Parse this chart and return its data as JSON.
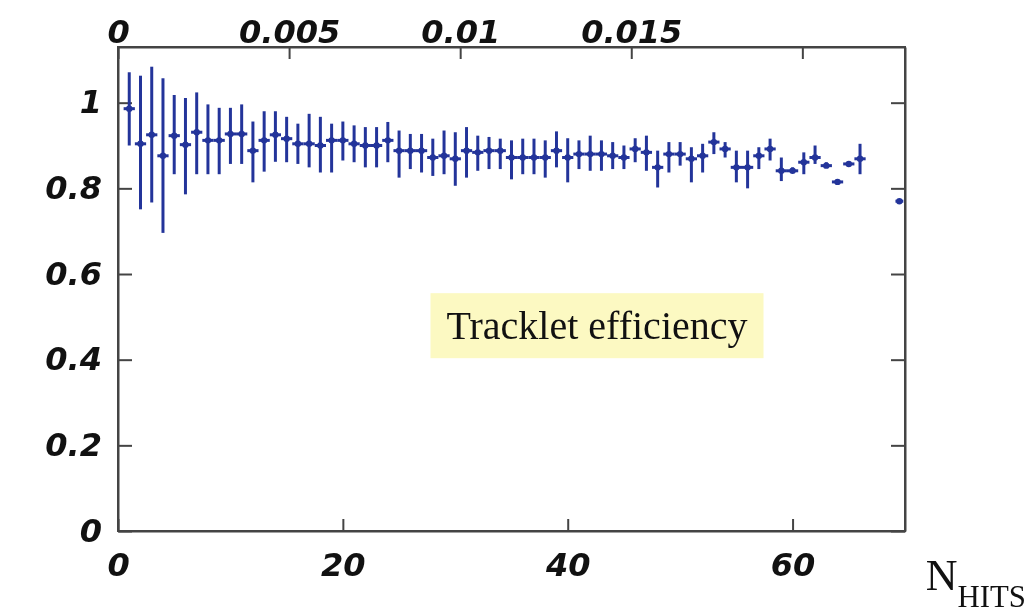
{
  "chart_data": {
    "type": "scatter",
    "xlabel": "N$_{HITS}$",
    "annotations": [
      "Tracklet efficiency"
    ],
    "color": "#23349a",
    "xlim": [
      0,
      70
    ],
    "xticks": [
      0,
      20,
      40,
      60
    ],
    "ylim": [
      0,
      1.13
    ],
    "yticks": [
      0,
      0.2,
      0.4,
      0.6,
      0.8,
      1
    ],
    "x2lim": [
      0,
      0.023
    ],
    "x2ticks": [
      0,
      0.005,
      0.01,
      0.015,
      {
        "value": 0.02,
        "label": null
      }
    ],
    "x": [
      1,
      2,
      3,
      4,
      5,
      6,
      7,
      8,
      9,
      10,
      11,
      12,
      13,
      14,
      15,
      16,
      17,
      18,
      19,
      20,
      21,
      22,
      23,
      24,
      25,
      26,
      27,
      28,
      29,
      30,
      31,
      32,
      33,
      34,
      35,
      36,
      37,
      38,
      39,
      40,
      41,
      42,
      43,
      44,
      45,
      46,
      47,
      48,
      49,
      50,
      51,
      52,
      53,
      54,
      55,
      56,
      57,
      58,
      59,
      60,
      61,
      62,
      63,
      64,
      65,
      66,
      69.5
    ],
    "values": [
      0.986,
      0.904,
      0.925,
      0.876,
      0.923,
      0.902,
      0.931,
      0.912,
      0.912,
      0.927,
      0.927,
      0.888,
      0.912,
      0.925,
      0.916,
      0.904,
      0.904,
      0.9,
      0.912,
      0.912,
      0.904,
      0.9,
      0.9,
      0.912,
      0.888,
      0.888,
      0.888,
      0.872,
      0.876,
      0.869,
      0.888,
      0.884,
      0.888,
      0.888,
      0.872,
      0.872,
      0.872,
      0.872,
      0.888,
      0.872,
      0.88,
      0.88,
      0.88,
      0.876,
      0.872,
      0.892,
      0.884,
      0.849,
      0.88,
      0.88,
      0.869,
      0.876,
      0.908,
      0.892,
      0.849,
      0.849,
      0.876,
      0.892,
      0.841,
      0.841,
      0.861,
      0.872,
      0.853,
      0.815,
      0.857,
      0.869,
      0.77
    ],
    "errors": [
      [
        0.9,
        1.071
      ],
      [
        0.751,
        1.063
      ],
      [
        0.767,
        1.084
      ],
      [
        0.696,
        1.057
      ],
      [
        0.833,
        1.018
      ],
      [
        0.786,
        1.011
      ],
      [
        0.833,
        1.024
      ],
      [
        0.833,
        0.996
      ],
      [
        0.833,
        0.988
      ],
      [
        0.857,
        0.988
      ],
      [
        0.857,
        0.996
      ],
      [
        0.814,
        0.956
      ],
      [
        0.839,
        0.98
      ],
      [
        0.862,
        0.98
      ],
      [
        0.861,
        0.967
      ],
      [
        0.857,
        0.951
      ],
      [
        0.849,
        0.974
      ],
      [
        0.837,
        0.967
      ],
      [
        0.837,
        0.951
      ],
      [
        0.865,
        0.956
      ],
      [
        0.861,
        0.947
      ],
      [
        0.849,
        0.943
      ],
      [
        0.849,
        0.943
      ],
      [
        0.861,
        0.955
      ],
      [
        0.825,
        0.935
      ],
      [
        0.845,
        0.927
      ],
      [
        0.837,
        0.927
      ],
      [
        0.829,
        0.916
      ],
      [
        0.833,
        0.935
      ],
      [
        0.806,
        0.931
      ],
      [
        0.825,
        0.943
      ],
      [
        0.841,
        0.923
      ],
      [
        0.845,
        0.92
      ],
      [
        0.845,
        0.916
      ],
      [
        0.821,
        0.912
      ],
      [
        0.833,
        0.916
      ],
      [
        0.833,
        0.916
      ],
      [
        0.825,
        0.912
      ],
      [
        0.849,
        0.933
      ],
      [
        0.814,
        0.917
      ],
      [
        0.845,
        0.912
      ],
      [
        0.841,
        0.923
      ],
      [
        0.841,
        0.912
      ],
      [
        0.845,
        0.908
      ],
      [
        0.845,
        0.9
      ],
      [
        0.861,
        0.917
      ],
      [
        0.841,
        0.923
      ],
      [
        0.802,
        0.888
      ],
      [
        0.837,
        0.908
      ],
      [
        0.853,
        0.908
      ],
      [
        0.814,
        0.896
      ],
      [
        0.837,
        0.904
      ],
      [
        0.88,
        0.931
      ],
      [
        0.872,
        0.908
      ],
      [
        0.814,
        0.888
      ],
      [
        0.8,
        0.888
      ],
      [
        0.845,
        0.896
      ],
      [
        0.865,
        0.916
      ],
      [
        0.817,
        0.872
      ],
      [
        0.837,
        0.849
      ],
      [
        0.833,
        0.884
      ],
      [
        0.857,
        0.9
      ],
      [
        0.849,
        0.861
      ],
      [
        0.81,
        0.821
      ],
      [
        0.853,
        0.861
      ],
      [
        0.833,
        0.904
      ],
      null
    ],
    "xerrors": [
      0.5,
      0.5,
      0.5,
      0.5,
      0.5,
      0.5,
      0.5,
      0.5,
      0.5,
      0.5,
      0.5,
      0.5,
      0.5,
      0.5,
      0.5,
      0.5,
      0.5,
      0.5,
      0.5,
      0.5,
      0.5,
      0.5,
      0.5,
      0.5,
      0.5,
      0.5,
      0.5,
      0.5,
      0.5,
      0.5,
      0.5,
      0.5,
      0.5,
      0.5,
      0.5,
      0.5,
      0.5,
      0.5,
      0.5,
      0.5,
      0.5,
      0.5,
      0.5,
      0.5,
      0.5,
      0.5,
      0.5,
      0.5,
      0.5,
      0.5,
      0.5,
      0.5,
      0.5,
      0.5,
      0.5,
      0.5,
      0.5,
      0.5,
      0.5,
      0.5,
      0.5,
      0.5,
      0.5,
      0.5,
      0.5,
      0.5,
      null
    ]
  }
}
